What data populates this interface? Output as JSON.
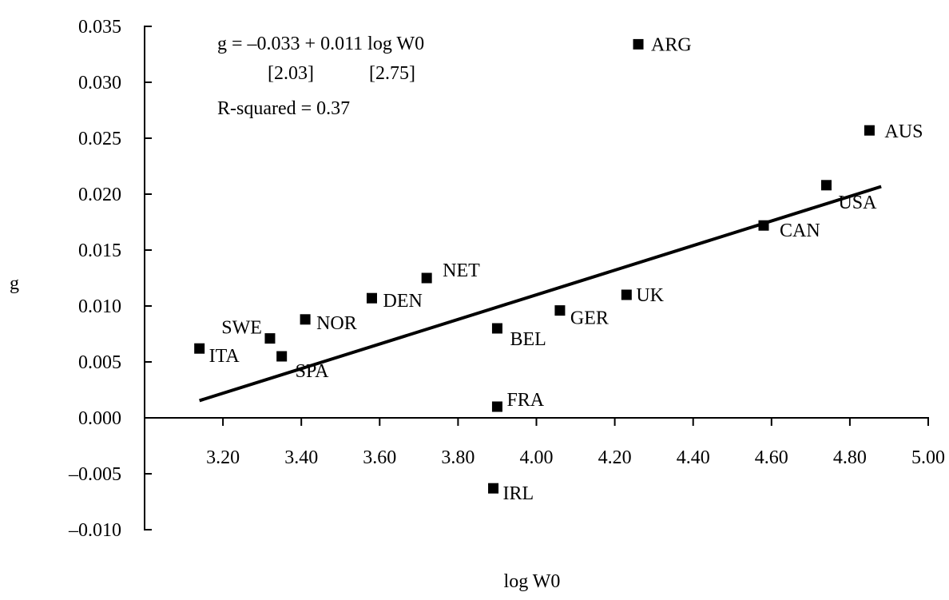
{
  "chart_data": {
    "type": "scatter",
    "title": "",
    "xlabel": "log W0",
    "ylabel": "g",
    "xlim": [
      3.0,
      5.0
    ],
    "ylim": [
      -0.01,
      0.035
    ],
    "xticks": [
      3.2,
      3.4,
      3.6,
      3.8,
      4.0,
      4.2,
      4.4,
      4.6,
      4.8,
      5.0
    ],
    "xtick_labels": [
      "3.20",
      "3.40",
      "3.60",
      "3.80",
      "4.00",
      "4.20",
      "4.40",
      "4.60",
      "4.80",
      "5.00"
    ],
    "yticks": [
      0.035,
      0.03,
      0.025,
      0.02,
      0.015,
      0.01,
      0.005,
      0.0,
      -0.005,
      -0.01
    ],
    "ytick_labels": [
      "0.035",
      "0.030",
      "0.025",
      "0.020",
      "0.015",
      "0.010",
      "0.005",
      "0.000",
      "–0.005",
      "–0.010"
    ],
    "grid": false,
    "legend": "none",
    "marker": "filled-square",
    "marker_color": "#000000",
    "line_color": "#000000",
    "points": [
      {
        "label": "ARG",
        "x": 4.26,
        "y": 0.0334
      },
      {
        "label": "AUS",
        "x": 4.85,
        "y": 0.0257
      },
      {
        "label": "USA",
        "x": 4.74,
        "y": 0.0208
      },
      {
        "label": "CAN",
        "x": 4.58,
        "y": 0.0172
      },
      {
        "label": "NET",
        "x": 3.72,
        "y": 0.0125
      },
      {
        "label": "UK",
        "x": 4.23,
        "y": 0.011
      },
      {
        "label": "DEN",
        "x": 3.58,
        "y": 0.0107
      },
      {
        "label": "GER",
        "x": 4.06,
        "y": 0.0096
      },
      {
        "label": "NOR",
        "x": 3.41,
        "y": 0.0088
      },
      {
        "label": "BEL",
        "x": 3.9,
        "y": 0.008
      },
      {
        "label": "SWE",
        "x": 3.32,
        "y": 0.0071
      },
      {
        "label": "ITA",
        "x": 3.14,
        "y": 0.0062
      },
      {
        "label": "SPA",
        "x": 3.35,
        "y": 0.0055
      },
      {
        "label": "FRA",
        "x": 3.9,
        "y": 0.001
      },
      {
        "label": "IRL",
        "x": 3.89,
        "y": -0.0063
      }
    ],
    "fit_line": {
      "intercept": -0.033,
      "slope": 0.011,
      "x_range": [
        3.14,
        4.88
      ]
    },
    "annotations": {
      "equation": "g = –0.033 + 0.011 log W0",
      "tstat_intercept": "[2.03]",
      "tstat_slope": "[2.75]",
      "r_squared": "R-squared = 0.37"
    }
  }
}
